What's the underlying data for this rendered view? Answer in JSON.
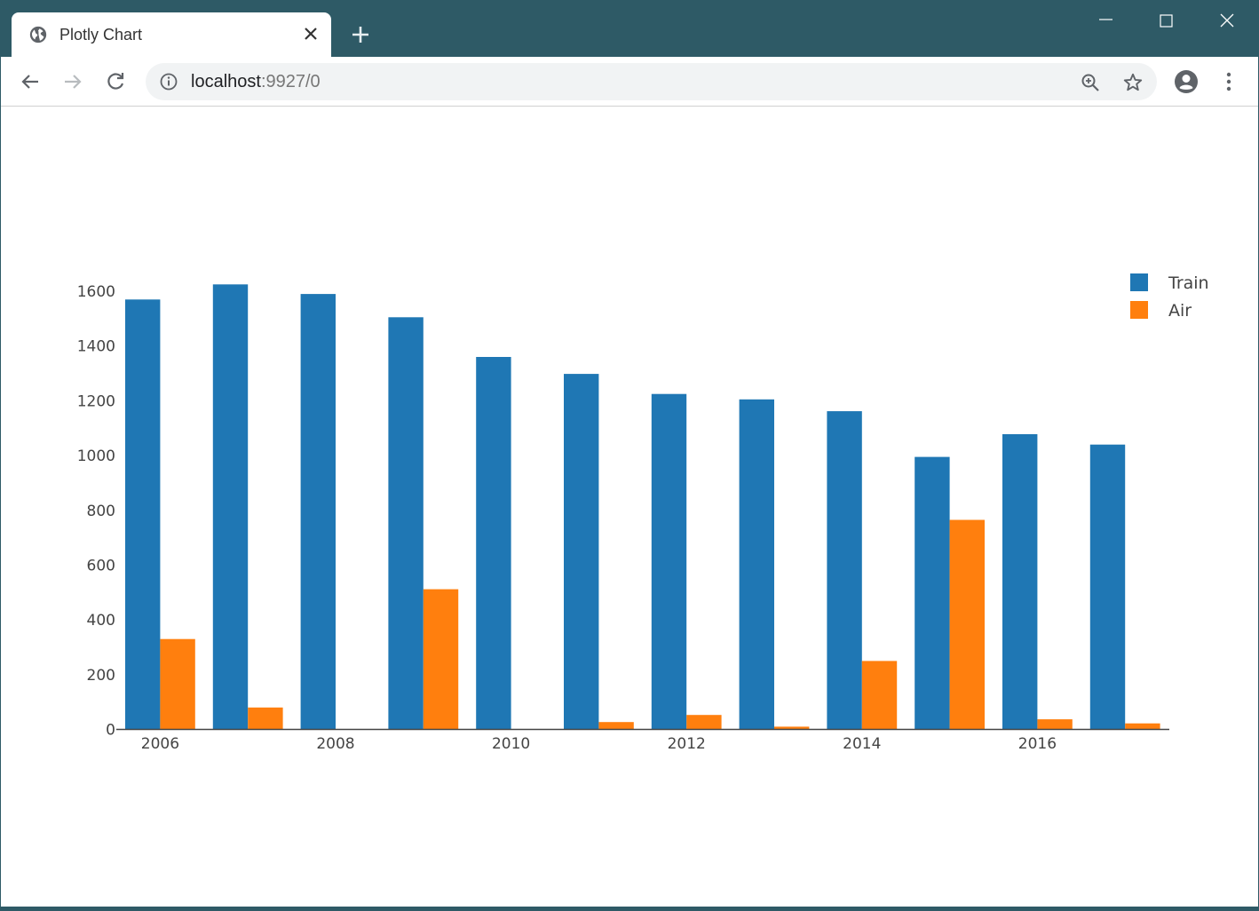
{
  "browser": {
    "tab_title": "Plotly Chart",
    "tab_close_icon": "close-icon",
    "new_tab_icon": "plus-icon",
    "url_host": "localhost",
    "url_rest": ":9927/0"
  },
  "colors": {
    "titlebar": "#2e5a66",
    "train": "#1f77b4",
    "air": "#ff7f0e"
  },
  "chart_data": {
    "type": "bar",
    "x": [
      2006,
      2007,
      2008,
      2009,
      2010,
      2011,
      2012,
      2013,
      2014,
      2015,
      2016,
      2017
    ],
    "series": [
      {
        "name": "Train",
        "values": [
          1570,
          1625,
          1590,
          1505,
          1360,
          1298,
          1225,
          1205,
          1162,
          995,
          1078,
          1040
        ]
      },
      {
        "name": "Air",
        "values": [
          330,
          80,
          0,
          512,
          0,
          27,
          53,
          10,
          250,
          765,
          37,
          22
        ]
      }
    ],
    "xticks": [
      "2006",
      "2008",
      "2010",
      "2012",
      "2014",
      "2016"
    ],
    "yticks": [
      "0",
      "200",
      "400",
      "600",
      "800",
      "1000",
      "1200",
      "1400",
      "1600"
    ],
    "ylim": [
      0,
      1600
    ],
    "legend_position": "top-right",
    "grid": false
  }
}
